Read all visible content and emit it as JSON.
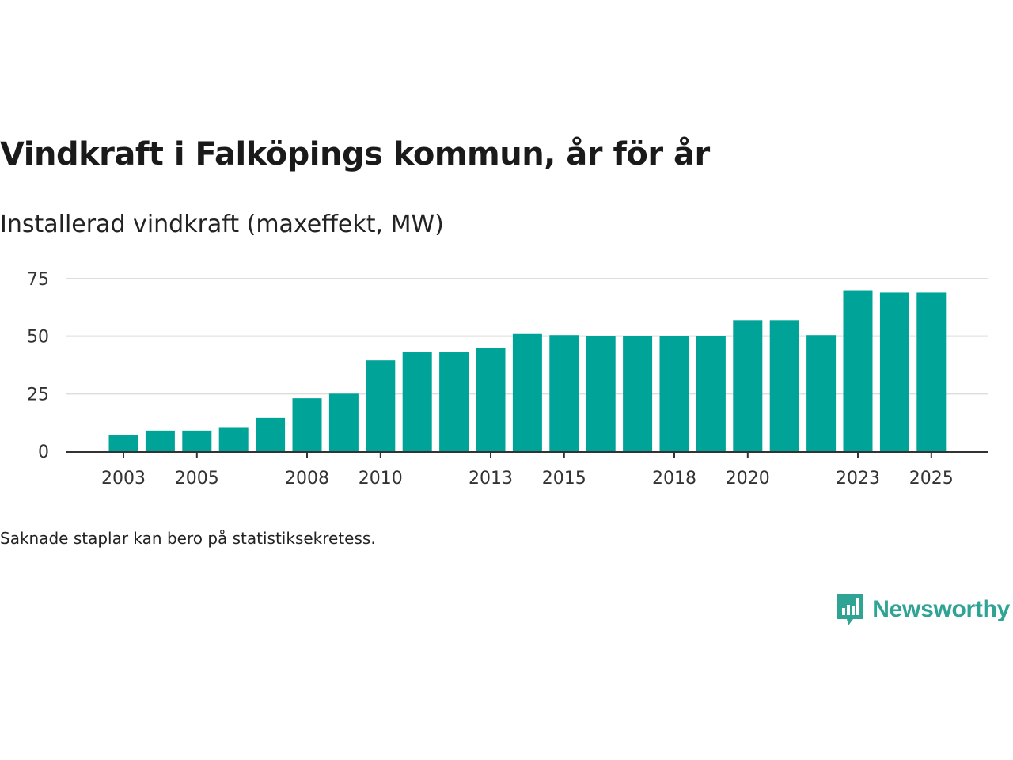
{
  "header": {
    "title": "Vindkraft i Falköpings kommun, år för år",
    "subtitle": "Installerad vindkraft (maxeffekt, MW)"
  },
  "footer": {
    "note": "Saknade staplar kan bero på statistiksekretess.",
    "brand": "Newsworthy"
  },
  "colors": {
    "bar": "#00a398",
    "grid": "#dddddd",
    "axis": "#333333",
    "brand": "#2fa394"
  },
  "chart_data": {
    "type": "bar",
    "title": "Vindkraft i Falköpings kommun, år för år",
    "ylabel": "Installerad vindkraft (maxeffekt, MW)",
    "xlabel": "",
    "categories": [
      "2003",
      "2004",
      "2005",
      "2006",
      "2007",
      "2008",
      "2009",
      "2010",
      "2011",
      "2012",
      "2013",
      "2014",
      "2015",
      "2016",
      "2017",
      "2018",
      "2019",
      "2020",
      "2021",
      "2022",
      "2023",
      "2024",
      "2025"
    ],
    "values": [
      7,
      9,
      9,
      10.5,
      14.5,
      23,
      25,
      39.5,
      43,
      43,
      45,
      51,
      50.5,
      50.2,
      50.2,
      50.2,
      50.2,
      57,
      57,
      50.5,
      70,
      69,
      69
    ],
    "x_tick_labels": [
      "2003",
      "2005",
      "2008",
      "2010",
      "2013",
      "2015",
      "2018",
      "2020",
      "2023",
      "2025"
    ],
    "y_ticks": [
      0,
      25,
      50,
      75
    ],
    "ylim": [
      0,
      75
    ],
    "grid": true,
    "legend": "none"
  }
}
